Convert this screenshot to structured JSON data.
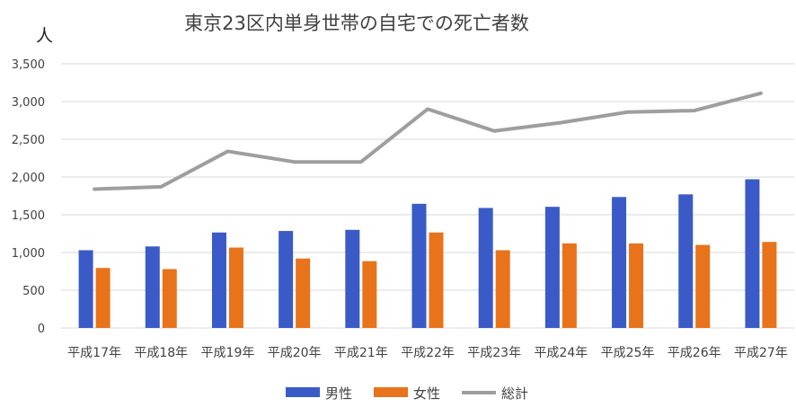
{
  "chart_data": {
    "type": "bar",
    "title": "東京23区内単身世帯の自宅での死亡者数",
    "unit_label": "人",
    "categories": [
      "平成17年",
      "平成18年",
      "平成19年",
      "平成20年",
      "平成21年",
      "平成22年",
      "平成23年",
      "平成24年",
      "平成25年",
      "平成26年",
      "平成27年"
    ],
    "ylim": [
      0,
      3500
    ],
    "yticks": [
      0,
      500,
      1000,
      1500,
      2000,
      2500,
      3000,
      3500
    ],
    "ytick_labels": [
      "0",
      "500",
      "1,000",
      "1,500",
      "2,000",
      "2,500",
      "3,000",
      "3,500"
    ],
    "grid": true,
    "legend_position": "bottom",
    "series": [
      {
        "name": "男性",
        "type": "bar",
        "color": "#3a5bc7",
        "values": [
          1030,
          1080,
          1265,
          1285,
          1300,
          1645,
          1590,
          1605,
          1735,
          1770,
          1970
        ]
      },
      {
        "name": "女性",
        "type": "bar",
        "color": "#e8731a",
        "values": [
          795,
          780,
          1065,
          920,
          885,
          1265,
          1030,
          1120,
          1120,
          1100,
          1140
        ]
      },
      {
        "name": "総計",
        "type": "line",
        "color": "#9e9e9e",
        "values": [
          1840,
          1870,
          2340,
          2200,
          2200,
          2900,
          2610,
          2720,
          2860,
          2880,
          3110
        ]
      }
    ]
  }
}
